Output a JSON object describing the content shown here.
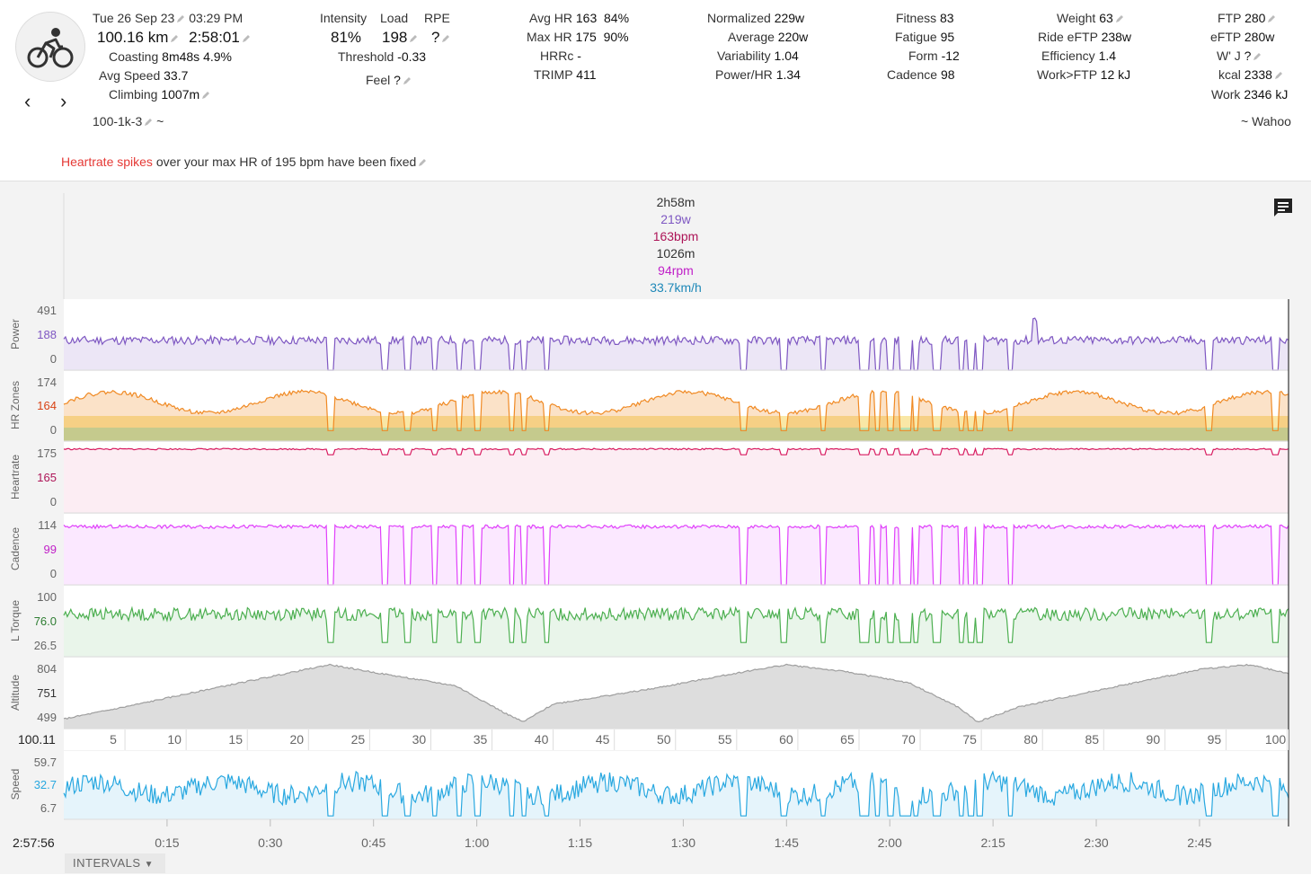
{
  "activity": {
    "date": "Tue 26 Sep 23",
    "time": "03:29 PM",
    "distance": "100.16 km",
    "duration": "2:58:01",
    "coasting_label": "Coasting",
    "coasting_value": "8m48s",
    "coasting_pct": "4.9%",
    "avg_speed_label": "Avg Speed",
    "avg_speed_value": "33.7",
    "climbing_label": "Climbing",
    "climbing_value": "1007m",
    "name": "100-1k-3",
    "tilde": "~",
    "source": "~ Wahoo"
  },
  "metrics": {
    "intensity_label": "Intensity",
    "intensity_value": "81%",
    "load_label": "Load",
    "load_value": "198",
    "rpe_label": "RPE",
    "rpe_value": "?",
    "threshold_label": "Threshold",
    "threshold_value": "-0.33",
    "feel_label": "Feel",
    "feel_value": "?",
    "avg_hr_label": "Avg HR",
    "avg_hr_value": "163",
    "avg_hr_pct": "84%",
    "max_hr_label": "Max HR",
    "max_hr_value": "175",
    "max_hr_pct": "90%",
    "hrrc_label": "HRRc",
    "hrrc_value": "-",
    "trimp_label": "TRIMP",
    "trimp_value": "411",
    "normalized_label": "Normalized",
    "normalized_value": "229w",
    "average_label": "Average",
    "average_value": "220w",
    "variability_label": "Variability",
    "variability_value": "1.04",
    "powerhr_label": "Power/HR",
    "powerhr_value": "1.34",
    "fitness_label": "Fitness",
    "fitness_value": "83",
    "fatigue_label": "Fatigue",
    "fatigue_value": "95",
    "form_label": "Form",
    "form_value": "-12",
    "cadence_label": "Cadence",
    "cadence_value": "98",
    "weight_label": "Weight",
    "weight_value": "63",
    "ride_eftp_label": "Ride eFTP",
    "ride_eftp_value": "238w",
    "efficiency_label": "Efficiency",
    "efficiency_value": "1.4",
    "work_ftp_label": "Work>FTP",
    "work_ftp_value": "12 kJ",
    "ftp_label": "FTP",
    "ftp_value": "280",
    "eftp_label": "eFTP",
    "eftp_value": "280w",
    "wj_label": "W' J",
    "wj_value": "?",
    "kcal_label": "kcal",
    "kcal_value": "2338",
    "work_label": "Work",
    "work_value": "2346 kJ"
  },
  "warning": {
    "link": "Heartrate spikes",
    "text": "over your max HR of 195 bpm have been fixed"
  },
  "summary": {
    "duration": "2h58m",
    "power": "219w",
    "hr": "163bpm",
    "altitude": "1026m",
    "cadence": "94rpm",
    "speed": "33.7km/h"
  },
  "colors": {
    "power": "#7e57c2",
    "hr_zone": "#f08a24",
    "heartrate": "#d81b60",
    "cadence": "#e040fb",
    "torque": "#4caf50",
    "altitude": "#9e9e9e",
    "speed": "#29a8e0"
  },
  "lanes": {
    "power": {
      "label": "Power",
      "max": "491",
      "avg": "188",
      "min": "0"
    },
    "hrzones": {
      "label": "HR Zones",
      "max": "174",
      "avg": "164",
      "min": "0"
    },
    "heartrate": {
      "label": "Heartrate",
      "max": "175",
      "avg": "165",
      "min": "0"
    },
    "cadence": {
      "label": "Cadence",
      "max": "114",
      "avg": "99",
      "min": "0"
    },
    "torque": {
      "label": "L Torque",
      "max": "100",
      "avg": "76.0",
      "min": "26.5"
    },
    "altitude": {
      "label": "Altitude",
      "max": "804",
      "avg": "751",
      "min": "499"
    },
    "speed": {
      "label": "Speed",
      "max": "59.7",
      "avg": "32.7",
      "min": "6.7"
    }
  },
  "distance_axis": {
    "total": "100.11",
    "ticks": [
      "5",
      "10",
      "15",
      "20",
      "25",
      "30",
      "35",
      "40",
      "45",
      "50",
      "55",
      "60",
      "65",
      "70",
      "75",
      "80",
      "85",
      "90",
      "95",
      "100"
    ]
  },
  "time_axis": {
    "total": "2:57:56",
    "ticks": [
      "0:15",
      "0:30",
      "0:45",
      "1:00",
      "1:15",
      "1:30",
      "1:45",
      "2:00",
      "2:15",
      "2:30",
      "2:45"
    ]
  },
  "intervals_label": "INTERVALS"
}
